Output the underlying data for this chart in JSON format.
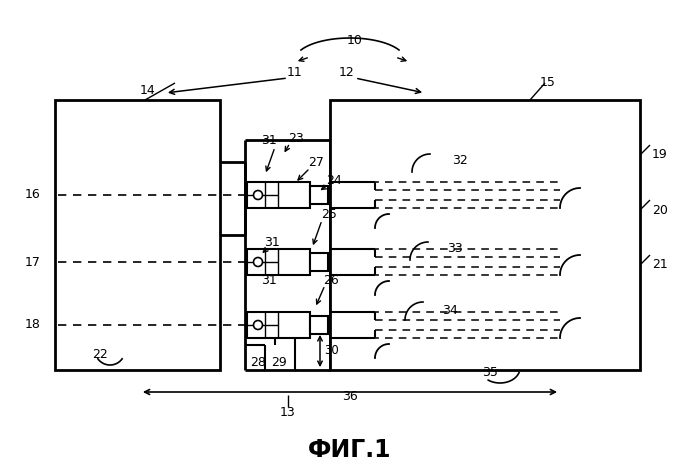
{
  "title": "ФИГ.1",
  "bg_color": "#ffffff",
  "line_color": "#000000",
  "fig_width": 7.0,
  "fig_height": 4.68,
  "dpi": 100
}
